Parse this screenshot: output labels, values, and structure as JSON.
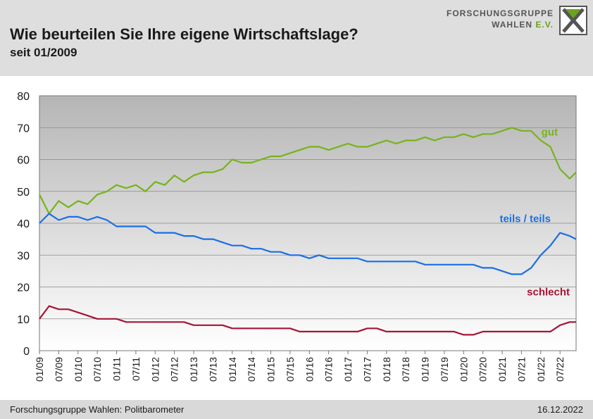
{
  "header": {
    "title": "Wie beurteilen Sie Ihre eigene Wirtschaftslage?",
    "subtitle": "seit 01/2009",
    "logo_line1": "FORSCHUNGSGRUPPE",
    "logo_line2_main": "WAHLEN",
    "logo_line2_ev": "E.V."
  },
  "footer": {
    "source": "Forschungsgruppe Wahlen: Politbarometer",
    "date": "16.12.2022"
  },
  "colors": {
    "gut": "#77b31c",
    "teils": "#1a6fe6",
    "schlecht": "#a51535",
    "plot_top": "#b8b8b8",
    "plot_bottom": "#ffffff"
  },
  "chart_data": {
    "type": "line",
    "title": "Wie beurteilen Sie Ihre eigene Wirtschaftslage?",
    "subtitle": "seit 01/2009",
    "xlabel": "",
    "ylabel": "",
    "ylim": [
      0,
      80
    ],
    "yticks": [
      0,
      10,
      20,
      30,
      40,
      50,
      60,
      70,
      80
    ],
    "xticks": [
      "01/09",
      "07/09",
      "01/10",
      "07/10",
      "01/11",
      "07/11",
      "01/12",
      "07/12",
      "01/13",
      "07/13",
      "01/14",
      "07/14",
      "01/15",
      "07/15",
      "01/16",
      "07/16",
      "01/17",
      "07/17",
      "01/18",
      "07/18",
      "01/19",
      "07/19",
      "01/20",
      "07/20",
      "01/21",
      "07/21",
      "01/22",
      "07/22"
    ],
    "grid": true,
    "legend": "inline labels at right end of each line",
    "x": [
      "2009-01",
      "2009-04",
      "2009-07",
      "2009-10",
      "2010-01",
      "2010-04",
      "2010-07",
      "2010-10",
      "2011-01",
      "2011-04",
      "2011-07",
      "2011-10",
      "2012-01",
      "2012-04",
      "2012-07",
      "2012-10",
      "2013-01",
      "2013-04",
      "2013-07",
      "2013-10",
      "2014-01",
      "2014-04",
      "2014-07",
      "2014-10",
      "2015-01",
      "2015-04",
      "2015-07",
      "2015-10",
      "2016-01",
      "2016-04",
      "2016-07",
      "2016-10",
      "2017-01",
      "2017-04",
      "2017-07",
      "2017-10",
      "2018-01",
      "2018-04",
      "2018-07",
      "2018-10",
      "2019-01",
      "2019-04",
      "2019-07",
      "2019-10",
      "2020-01",
      "2020-04",
      "2020-07",
      "2020-10",
      "2021-01",
      "2021-04",
      "2021-07",
      "2021-10",
      "2022-01",
      "2022-04",
      "2022-07",
      "2022-10",
      "2022-12"
    ],
    "series": [
      {
        "name": "gut",
        "label_color": "#77b31c",
        "values": [
          49,
          43,
          47,
          45,
          47,
          46,
          49,
          50,
          52,
          51,
          52,
          50,
          53,
          52,
          55,
          53,
          55,
          56,
          56,
          57,
          60,
          59,
          59,
          60,
          61,
          61,
          62,
          63,
          64,
          64,
          63,
          64,
          65,
          64,
          64,
          65,
          66,
          65,
          66,
          66,
          67,
          66,
          67,
          67,
          68,
          67,
          68,
          68,
          69,
          70,
          69,
          69,
          66,
          64,
          57,
          54,
          56
        ]
      },
      {
        "name": "teils / teils",
        "label_color": "#1a6fe6",
        "values": [
          40,
          43,
          41,
          42,
          42,
          41,
          42,
          41,
          39,
          39,
          39,
          39,
          37,
          37,
          37,
          36,
          36,
          35,
          35,
          34,
          33,
          33,
          32,
          32,
          31,
          31,
          30,
          30,
          29,
          30,
          29,
          29,
          29,
          29,
          28,
          28,
          28,
          28,
          28,
          28,
          27,
          27,
          27,
          27,
          27,
          27,
          26,
          26,
          25,
          24,
          24,
          26,
          30,
          33,
          37,
          36,
          35
        ]
      },
      {
        "name": "schlecht",
        "label_color": "#a51535",
        "values": [
          10,
          14,
          13,
          13,
          12,
          11,
          10,
          10,
          10,
          9,
          9,
          9,
          9,
          9,
          9,
          9,
          8,
          8,
          8,
          8,
          7,
          7,
          7,
          7,
          7,
          7,
          7,
          6,
          6,
          6,
          6,
          6,
          6,
          6,
          7,
          7,
          6,
          6,
          6,
          6,
          6,
          6,
          6,
          6,
          5,
          5,
          6,
          6,
          6,
          6,
          6,
          6,
          6,
          6,
          8,
          9,
          9
        ]
      }
    ]
  }
}
